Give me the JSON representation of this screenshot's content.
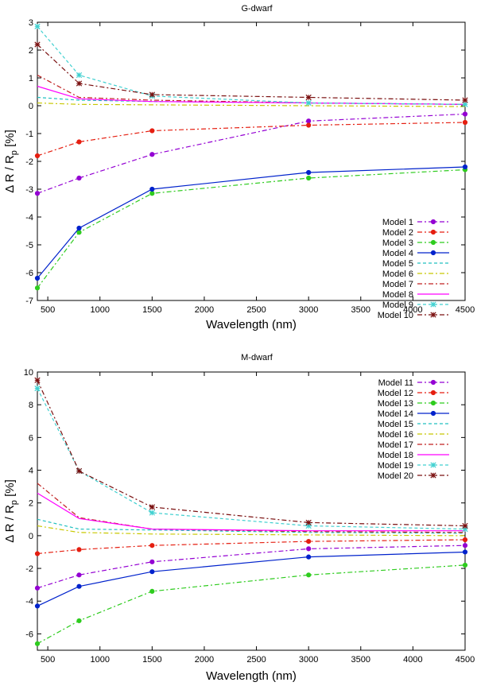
{
  "chart_data": [
    {
      "type": "line",
      "title": "G-dwarf",
      "xlabel": "Wavelength (nm)",
      "ylabel": "Δ R / R",
      "ylabel_sub": "p",
      "ylabel_suffix": " [%]",
      "xlim": [
        400,
        4500
      ],
      "ylim": [
        -7,
        3
      ],
      "xticks": [
        500,
        1000,
        1500,
        2000,
        2500,
        3000,
        3500,
        4000,
        4500
      ],
      "yticks": [
        -7,
        -6,
        -5,
        -4,
        -3,
        -2,
        -1,
        0,
        1,
        2,
        3
      ],
      "legend_position": "bottom-right",
      "x": [
        400,
        800,
        1500,
        3000,
        4500
      ],
      "series": [
        {
          "name": "Model 1",
          "color": "#9400d3",
          "dash": "6,3,2,3",
          "marker": "circle",
          "values": [
            -3.15,
            -2.6,
            -1.75,
            -0.55,
            -0.3
          ]
        },
        {
          "name": "Model 2",
          "color": "#e51e10",
          "dash": "6,3,2,3",
          "marker": "circle",
          "values": [
            -1.8,
            -1.3,
            -0.9,
            -0.7,
            -0.6
          ]
        },
        {
          "name": "Model 3",
          "color": "#2ecc1e",
          "dash": "6,3,2,3",
          "marker": "circle",
          "values": [
            -6.55,
            -4.55,
            -3.15,
            -2.6,
            -2.3
          ]
        },
        {
          "name": "Model 4",
          "color": "#0022cc",
          "dash": "",
          "marker": "circle",
          "values": [
            -6.2,
            -4.4,
            -3.0,
            -2.4,
            -2.2
          ]
        },
        {
          "name": "Model 5",
          "color": "#20c0c0",
          "dash": "4,3",
          "marker": "none",
          "values": [
            0.3,
            0.2,
            0.15,
            0.1,
            0.05
          ]
        },
        {
          "name": "Model 6",
          "color": "#c8c800",
          "dash": "6,3,2,3",
          "marker": "none",
          "values": [
            0.1,
            0.05,
            0.03,
            0.0,
            -0.03
          ]
        },
        {
          "name": "Model 7",
          "color": "#c02020",
          "dash": "6,3,2,3",
          "marker": "none",
          "values": [
            1.1,
            0.3,
            0.2,
            0.1,
            0.05
          ]
        },
        {
          "name": "Model 8",
          "color": "#ff00ff",
          "dash": "",
          "marker": "none",
          "values": [
            0.7,
            0.25,
            0.15,
            0.1,
            0.05
          ]
        },
        {
          "name": "Model 9",
          "color": "#40d0d0",
          "dash": "4,3",
          "marker": "star",
          "values": [
            2.85,
            1.1,
            0.35,
            0.1,
            0.05
          ]
        },
        {
          "name": "Model 10",
          "color": "#7a1010",
          "dash": "6,3,2,3",
          "marker": "star",
          "values": [
            2.2,
            0.8,
            0.4,
            0.3,
            0.2
          ]
        }
      ]
    },
    {
      "type": "line",
      "title": "M-dwarf",
      "xlabel": "Wavelength (nm)",
      "ylabel": "Δ R / R",
      "ylabel_sub": "p",
      "ylabel_suffix": " [%]",
      "xlim": [
        400,
        4500
      ],
      "ylim": [
        -7,
        10
      ],
      "xticks": [
        500,
        1000,
        1500,
        2000,
        2500,
        3000,
        3500,
        4000,
        4500
      ],
      "yticks": [
        -6,
        -4,
        -2,
        0,
        2,
        4,
        6,
        8,
        10
      ],
      "legend_position": "top-right",
      "x": [
        400,
        800,
        1500,
        3000,
        4500
      ],
      "series": [
        {
          "name": "Model 11",
          "color": "#9400d3",
          "dash": "6,3,2,3",
          "marker": "circle",
          "values": [
            -3.2,
            -2.4,
            -1.6,
            -0.8,
            -0.6
          ]
        },
        {
          "name": "Model 12",
          "color": "#e51e10",
          "dash": "6,3,2,3",
          "marker": "circle",
          "values": [
            -1.1,
            -0.85,
            -0.6,
            -0.35,
            -0.25
          ]
        },
        {
          "name": "Model 13",
          "color": "#2ecc1e",
          "dash": "6,3,2,3",
          "marker": "circle",
          "values": [
            -6.6,
            -5.2,
            -3.4,
            -2.4,
            -1.8
          ]
        },
        {
          "name": "Model 14",
          "color": "#0022cc",
          "dash": "",
          "marker": "circle",
          "values": [
            -4.3,
            -3.1,
            -2.2,
            -1.3,
            -1.0
          ]
        },
        {
          "name": "Model 15",
          "color": "#20c0c0",
          "dash": "4,3",
          "marker": "none",
          "values": [
            1.0,
            0.4,
            0.35,
            0.2,
            0.15
          ]
        },
        {
          "name": "Model 16",
          "color": "#c8c800",
          "dash": "6,3,2,3",
          "marker": "none",
          "values": [
            0.6,
            0.2,
            0.1,
            0.05,
            0.0
          ]
        },
        {
          "name": "Model 17",
          "color": "#c02020",
          "dash": "6,3,2,3",
          "marker": "none",
          "values": [
            3.2,
            1.1,
            0.4,
            0.25,
            0.2
          ]
        },
        {
          "name": "Model 18",
          "color": "#ff00ff",
          "dash": "",
          "marker": "none",
          "values": [
            2.6,
            1.05,
            0.4,
            0.3,
            0.3
          ]
        },
        {
          "name": "Model 19",
          "color": "#40d0d0",
          "dash": "4,3",
          "marker": "star",
          "values": [
            9.0,
            3.95,
            1.4,
            0.6,
            0.4
          ]
        },
        {
          "name": "Model 20",
          "color": "#7a1010",
          "dash": "6,3,2,3",
          "marker": "star",
          "values": [
            9.5,
            3.95,
            1.75,
            0.8,
            0.6
          ]
        }
      ]
    }
  ]
}
